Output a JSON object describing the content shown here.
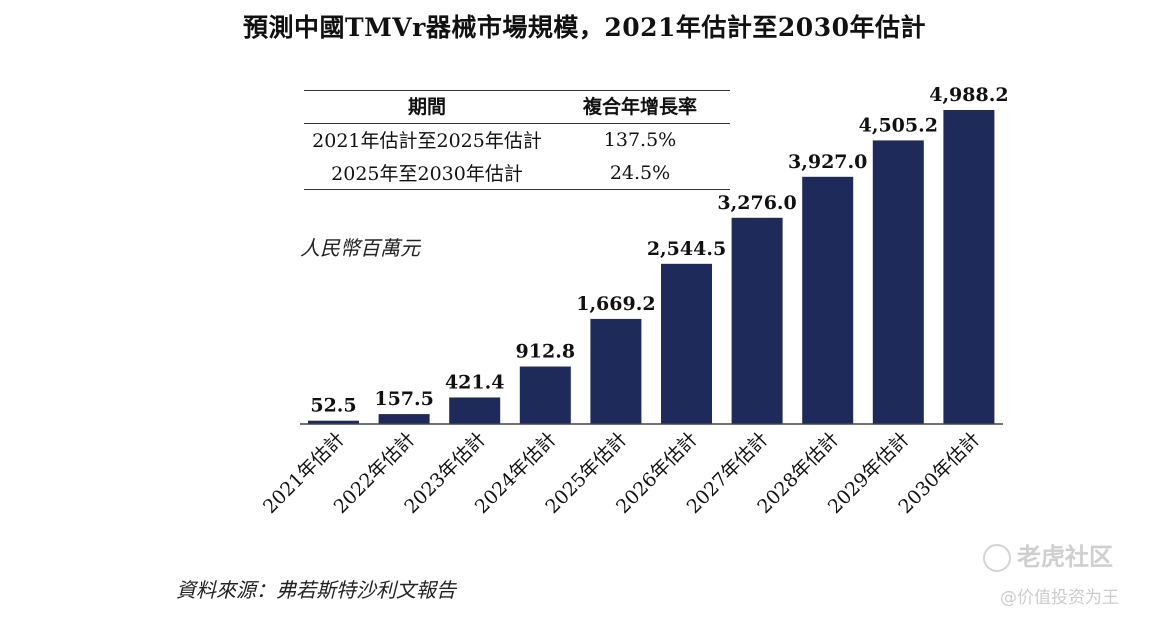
{
  "title": "預測中國TMVr器械市場規模，2021年估計至2030年估計",
  "cagr_table": {
    "headers": [
      "期間",
      "複合年增長率"
    ],
    "rows": [
      [
        "2021年估計至2025年估計",
        "137.5%"
      ],
      [
        "2025年至2030年估計",
        "24.5%"
      ]
    ]
  },
  "unit_label": "人民幣百萬元",
  "source": "資料來源：弗若斯特沙利文報告",
  "watermark": {
    "brand": "老虎社区",
    "account": "@价值投资为王"
  },
  "colors": {
    "bar": "#1e2a5a"
  },
  "chart_data": {
    "type": "bar",
    "categories": [
      "2021年估計",
      "2022年估計",
      "2023年估計",
      "2024年估計",
      "2025年估計",
      "2026年估計",
      "2027年估計",
      "2028年估計",
      "2029年估計",
      "2030年估計"
    ],
    "values": [
      52.5,
      157.5,
      421.4,
      912.8,
      1669.2,
      2544.5,
      3276.0,
      3927.0,
      4505.2,
      4988.2
    ],
    "value_labels": [
      "52.5",
      "157.5",
      "421.4",
      "912.8",
      "1,669.2",
      "2,544.5",
      "3,276.0",
      "3,927.0",
      "4,505.2",
      "4,988.2"
    ],
    "ylim": [
      0,
      5000
    ],
    "ylabel": "人民幣百萬元",
    "xlabel": "",
    "grid": false
  }
}
